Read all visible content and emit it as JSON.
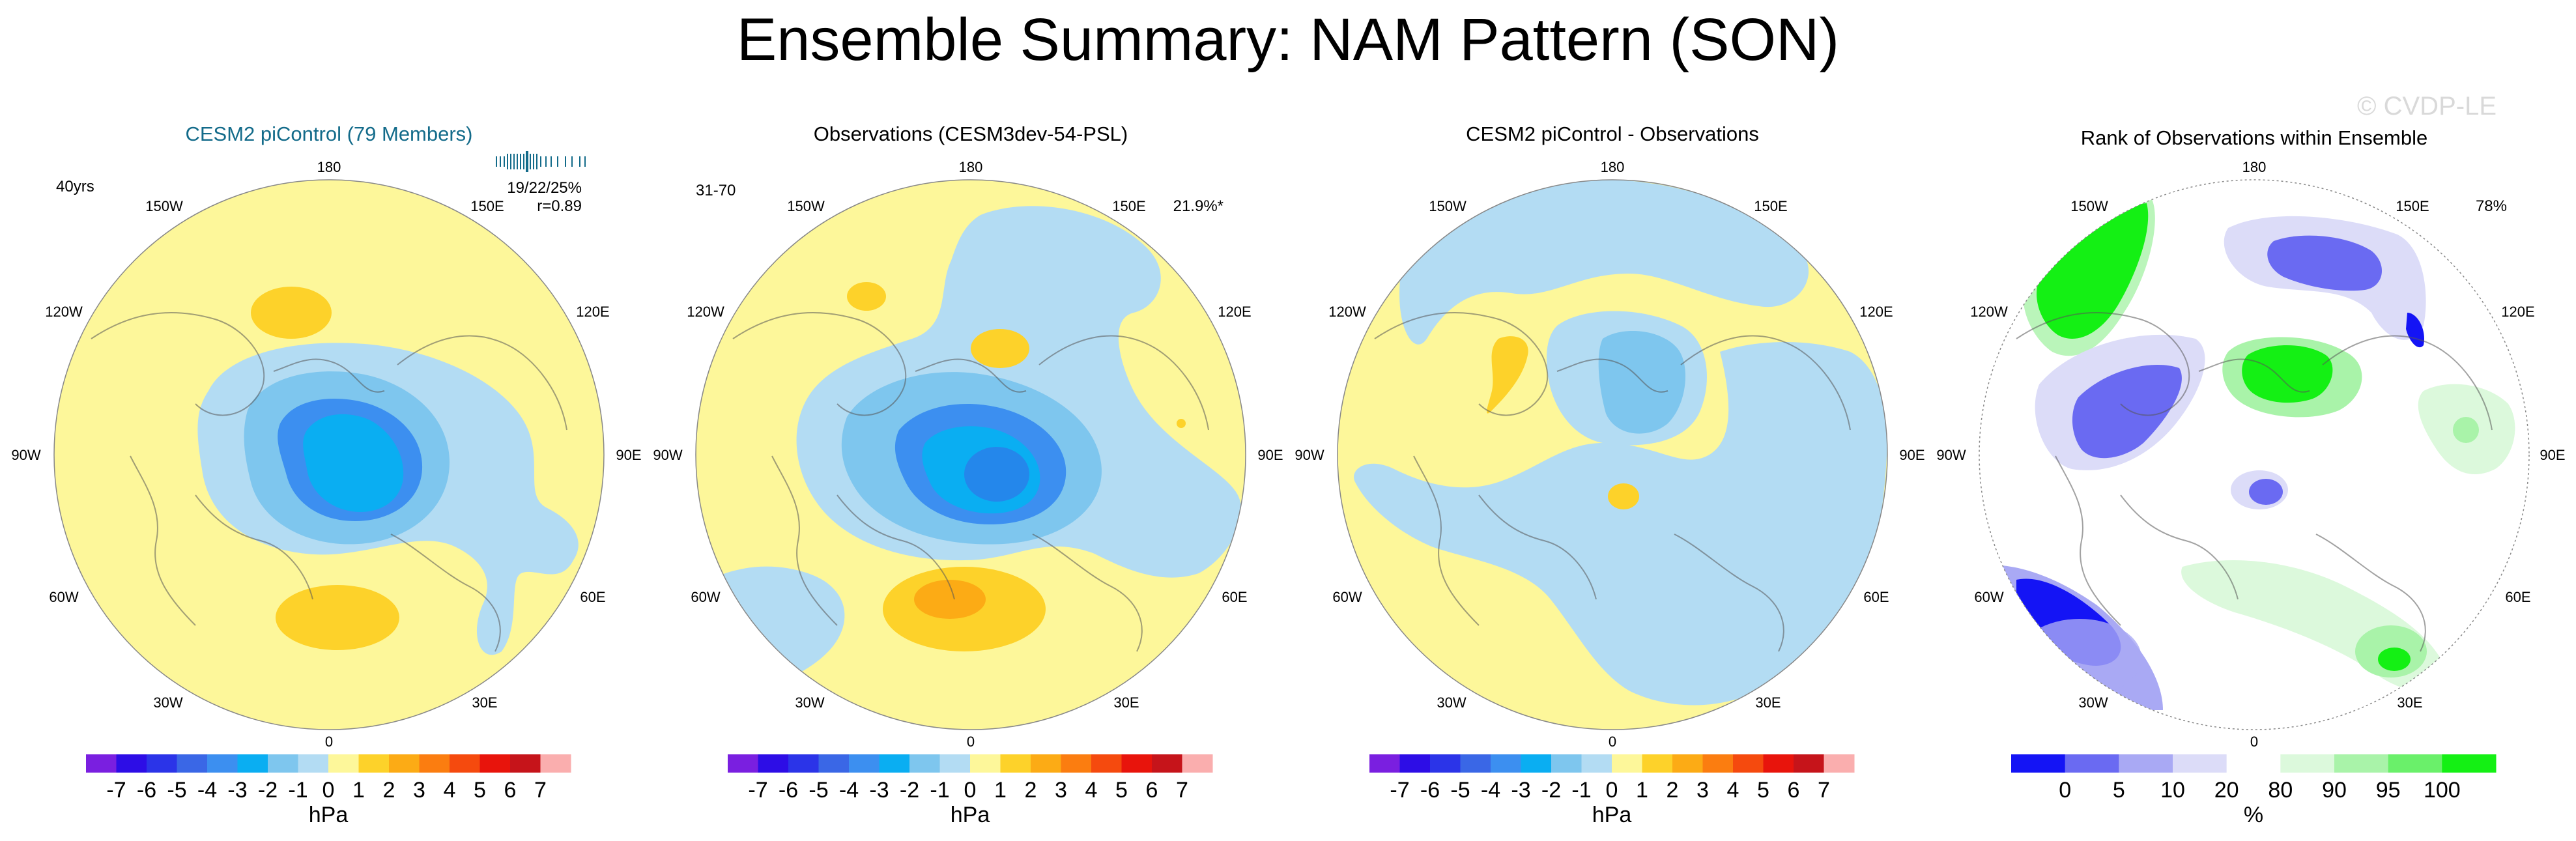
{
  "title": "Ensemble Summary: NAM Pattern (SON)",
  "watermark": "© CVDP-LE",
  "longitudes": {
    "top": "180",
    "bottom": "0",
    "upper_left": "150W",
    "upper_right": "150E",
    "mid_left": "120W",
    "mid_right": "120E",
    "left": "90W",
    "right": "90E",
    "lower_mid_left": "60W",
    "lower_mid_right": "60E",
    "lower_left": "30W",
    "lower_right": "30E"
  },
  "colorbars": {
    "hpa": {
      "unit": "hPa",
      "labels": [
        "-7",
        "-6",
        "-5",
        "-4",
        "-3",
        "-2",
        "-1",
        "0",
        "1",
        "2",
        "3",
        "4",
        "5",
        "6",
        "7"
      ],
      "colors": [
        "#7a1fe0",
        "#2d0de6",
        "#2b34e8",
        "#3a67e6",
        "#3c8ff0",
        "#0aaef2",
        "#7ec6ee",
        "#b3dcf3",
        "#fdf79a",
        "#fdd22a",
        "#fcab15",
        "#fb7d10",
        "#f54a0e",
        "#e8140c",
        "#c6141a",
        "#faaeae"
      ]
    },
    "rank": {
      "unit": "%",
      "labels": [
        "0",
        "5",
        "10",
        "20",
        "80",
        "90",
        "95",
        "100"
      ],
      "label_positions": [
        0,
        5,
        10,
        20,
        80,
        90,
        95,
        100
      ],
      "colors": [
        "#1414f5",
        "#6a6af2",
        "#a9a9f4",
        "#dcdcf8",
        "#ffffff",
        "#dcf9dc",
        "#a9f3a9",
        "#6af06a",
        "#14f014"
      ]
    }
  },
  "panels": [
    {
      "title": "CESM2 piControl (79 Members)",
      "title_color": "#136b8a",
      "left_text": "40yrs",
      "right_text_1": "19/22/25%",
      "right_text_2": "r=0.89",
      "colorbar": "hpa",
      "background": "#fdf79a"
    },
    {
      "title": "Observations (CESM3dev-54-PSL)",
      "title_color": "#000000",
      "left_text": "31-70",
      "right_text_1": "21.9%*",
      "colorbar": "hpa",
      "background": "#fdf79a"
    },
    {
      "title": "CESM2 piControl - Observations",
      "title_color": "#000000",
      "colorbar": "hpa",
      "background": "#fdf79a"
    },
    {
      "title": "Rank of Observations within Ensemble",
      "title_color": "#000000",
      "right_text_1": "78%",
      "colorbar": "rank",
      "background": "#ffffff"
    }
  ],
  "chart_data": [
    {
      "type": "heatmap",
      "projection": "north polar stereographic",
      "title": "CESM2 piControl (79 Members)",
      "units": "hPa",
      "colorbar_range": [
        -7,
        7
      ],
      "features": [
        {
          "name": "Arctic low center",
          "value": -3
        },
        {
          "name": "Arctic low ring",
          "value": -1.5
        },
        {
          "name": "Pacific high",
          "value": 1.5
        },
        {
          "name": "Atlantic high",
          "value": 1.5
        }
      ]
    },
    {
      "type": "heatmap",
      "projection": "north polar stereographic",
      "title": "Observations (CESM3dev-54-PSL)",
      "units": "hPa",
      "colorbar_range": [
        -7,
        7
      ],
      "features": [
        {
          "name": "Arctic low center",
          "value": -3.5
        },
        {
          "name": "Arctic low ring",
          "value": -1.5
        },
        {
          "name": "Atlantic high",
          "value": 2.5
        },
        {
          "name": "Pacific high",
          "value": 1.5
        }
      ]
    },
    {
      "type": "heatmap",
      "projection": "north polar stereographic",
      "title": "CESM2 piControl - Observations",
      "units": "hPa",
      "colorbar_range": [
        -7,
        7
      ],
      "features": [
        {
          "name": "Siberian negative",
          "value": -1.5
        },
        {
          "name": "Canadian positive",
          "value": 1.5
        },
        {
          "name": "Central positive",
          "value": 1.5
        }
      ]
    },
    {
      "type": "heatmap",
      "projection": "north polar stereographic",
      "title": "Rank of Observations within Ensemble",
      "units": "%",
      "colorbar_range": [
        0,
        100
      ],
      "features": [
        {
          "name": "Pacific high rank",
          "value": 100
        },
        {
          "name": "Atlantic low rank",
          "value": 0
        },
        {
          "name": "Central high rank",
          "value": 97
        },
        {
          "name": "Eurasian low rank",
          "value": 3
        },
        {
          "name": "Western Europe low rank",
          "value": 2
        },
        {
          "name": "Asian high rank",
          "value": 96
        }
      ]
    }
  ]
}
